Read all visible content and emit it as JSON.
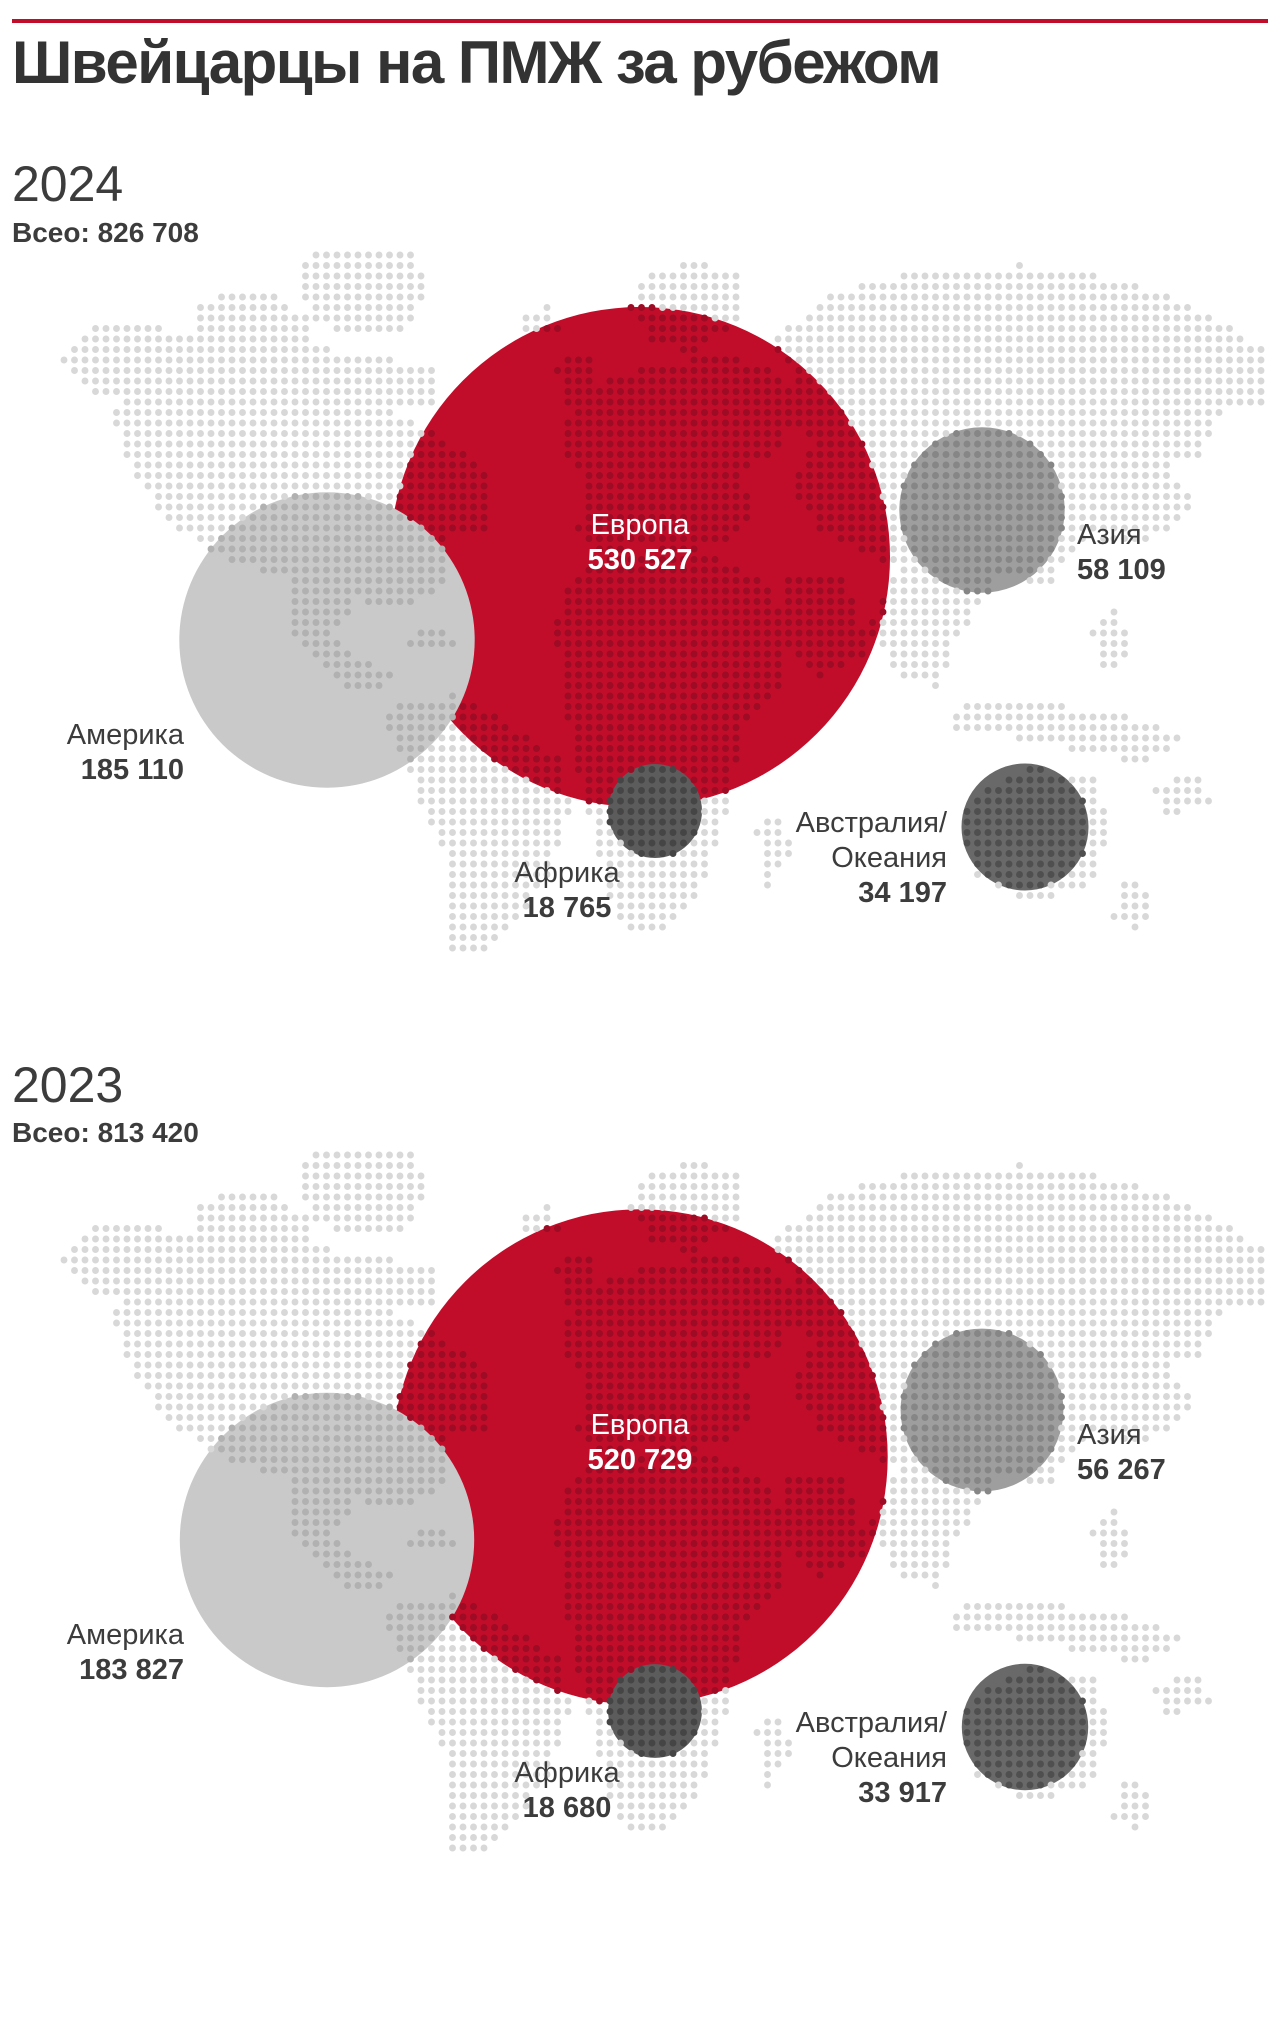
{
  "title": "Швейцарцы на ПМЖ за рубежом",
  "colors": {
    "accent_red": "#c10d2a",
    "europe_fill": "#c10d2a",
    "europe_dot": "#9d0b24",
    "america_fill": "#c9c9c9",
    "america_dot": "#b1b1b1",
    "asia_fill": "#9e9e9e",
    "asia_dot": "#868686",
    "africa_fill": "#5c5c5c",
    "africa_dot": "#454545",
    "australia_fill": "#696969",
    "australia_dot": "#4f4f4f",
    "land_dot": "#d8d8d8",
    "text_title": "#333333",
    "text_dark": "#3c3c3c",
    "label_on_red": "#ffffff"
  },
  "sections": [
    {
      "year": "2024",
      "total_label": "Всео: 826 708",
      "regions": [
        {
          "key": "europe",
          "name": "Европа",
          "name_lines": [
            "Европа"
          ],
          "value": "530 527",
          "value_num": 530527
        },
        {
          "key": "america",
          "name": "Америка",
          "name_lines": [
            "Америка"
          ],
          "value": "185 110",
          "value_num": 185110
        },
        {
          "key": "asia",
          "name": "Азия",
          "name_lines": [
            "Азия"
          ],
          "value": "58 109",
          "value_num": 58109
        },
        {
          "key": "africa",
          "name": "Африка",
          "name_lines": [
            "Африка"
          ],
          "value": "18 765",
          "value_num": 18765
        },
        {
          "key": "australia",
          "name": "Австралия/Океания",
          "name_lines": [
            "Австралия/",
            "Океания"
          ],
          "value": "34 197",
          "value_num": 34197
        }
      ]
    },
    {
      "year": "2023",
      "total_label": "Всео: 813 420",
      "regions": [
        {
          "key": "europe",
          "name": "Европа",
          "name_lines": [
            "Европа"
          ],
          "value": "520 729",
          "value_num": 520729
        },
        {
          "key": "america",
          "name": "Америка",
          "name_lines": [
            "Америка"
          ],
          "value": "183 827",
          "value_num": 183827
        },
        {
          "key": "asia",
          "name": "Азия",
          "name_lines": [
            "Азия"
          ],
          "value": "56 267",
          "value_num": 56267
        },
        {
          "key": "africa",
          "name": "Африка",
          "name_lines": [
            "Африка"
          ],
          "value": "18 680",
          "value_num": 18680
        },
        {
          "key": "australia",
          "name": "Австралия/Океания",
          "name_lines": [
            "Австралия/",
            "Океания"
          ],
          "value": "33 917",
          "value_num": 33917
        }
      ]
    }
  ],
  "chart_data": [
    {
      "type": "bubble",
      "title": "Швейцарцы на ПМЖ за рубежом",
      "year": "2024",
      "total": 826708,
      "categories": [
        "Европа",
        "Америка",
        "Азия",
        "Австралия/Океания",
        "Африка"
      ],
      "values": [
        530527,
        185110,
        58109,
        34197,
        18765
      ],
      "legend_position": "labels-next-to-bubbles",
      "note": "bubble area proportional to value, bubbles placed over dotted world map"
    },
    {
      "type": "bubble",
      "title": "Швейцарцы на ПМЖ за рубежом",
      "year": "2023",
      "total": 813420,
      "categories": [
        "Европа",
        "Америка",
        "Азия",
        "Австралия/Океания",
        "Африка"
      ],
      "values": [
        520729,
        183827,
        56267,
        33917,
        18680
      ],
      "legend_position": "labels-next-to-bubbles",
      "note": "bubble area proportional to value, bubbles placed over dotted world map"
    }
  ]
}
